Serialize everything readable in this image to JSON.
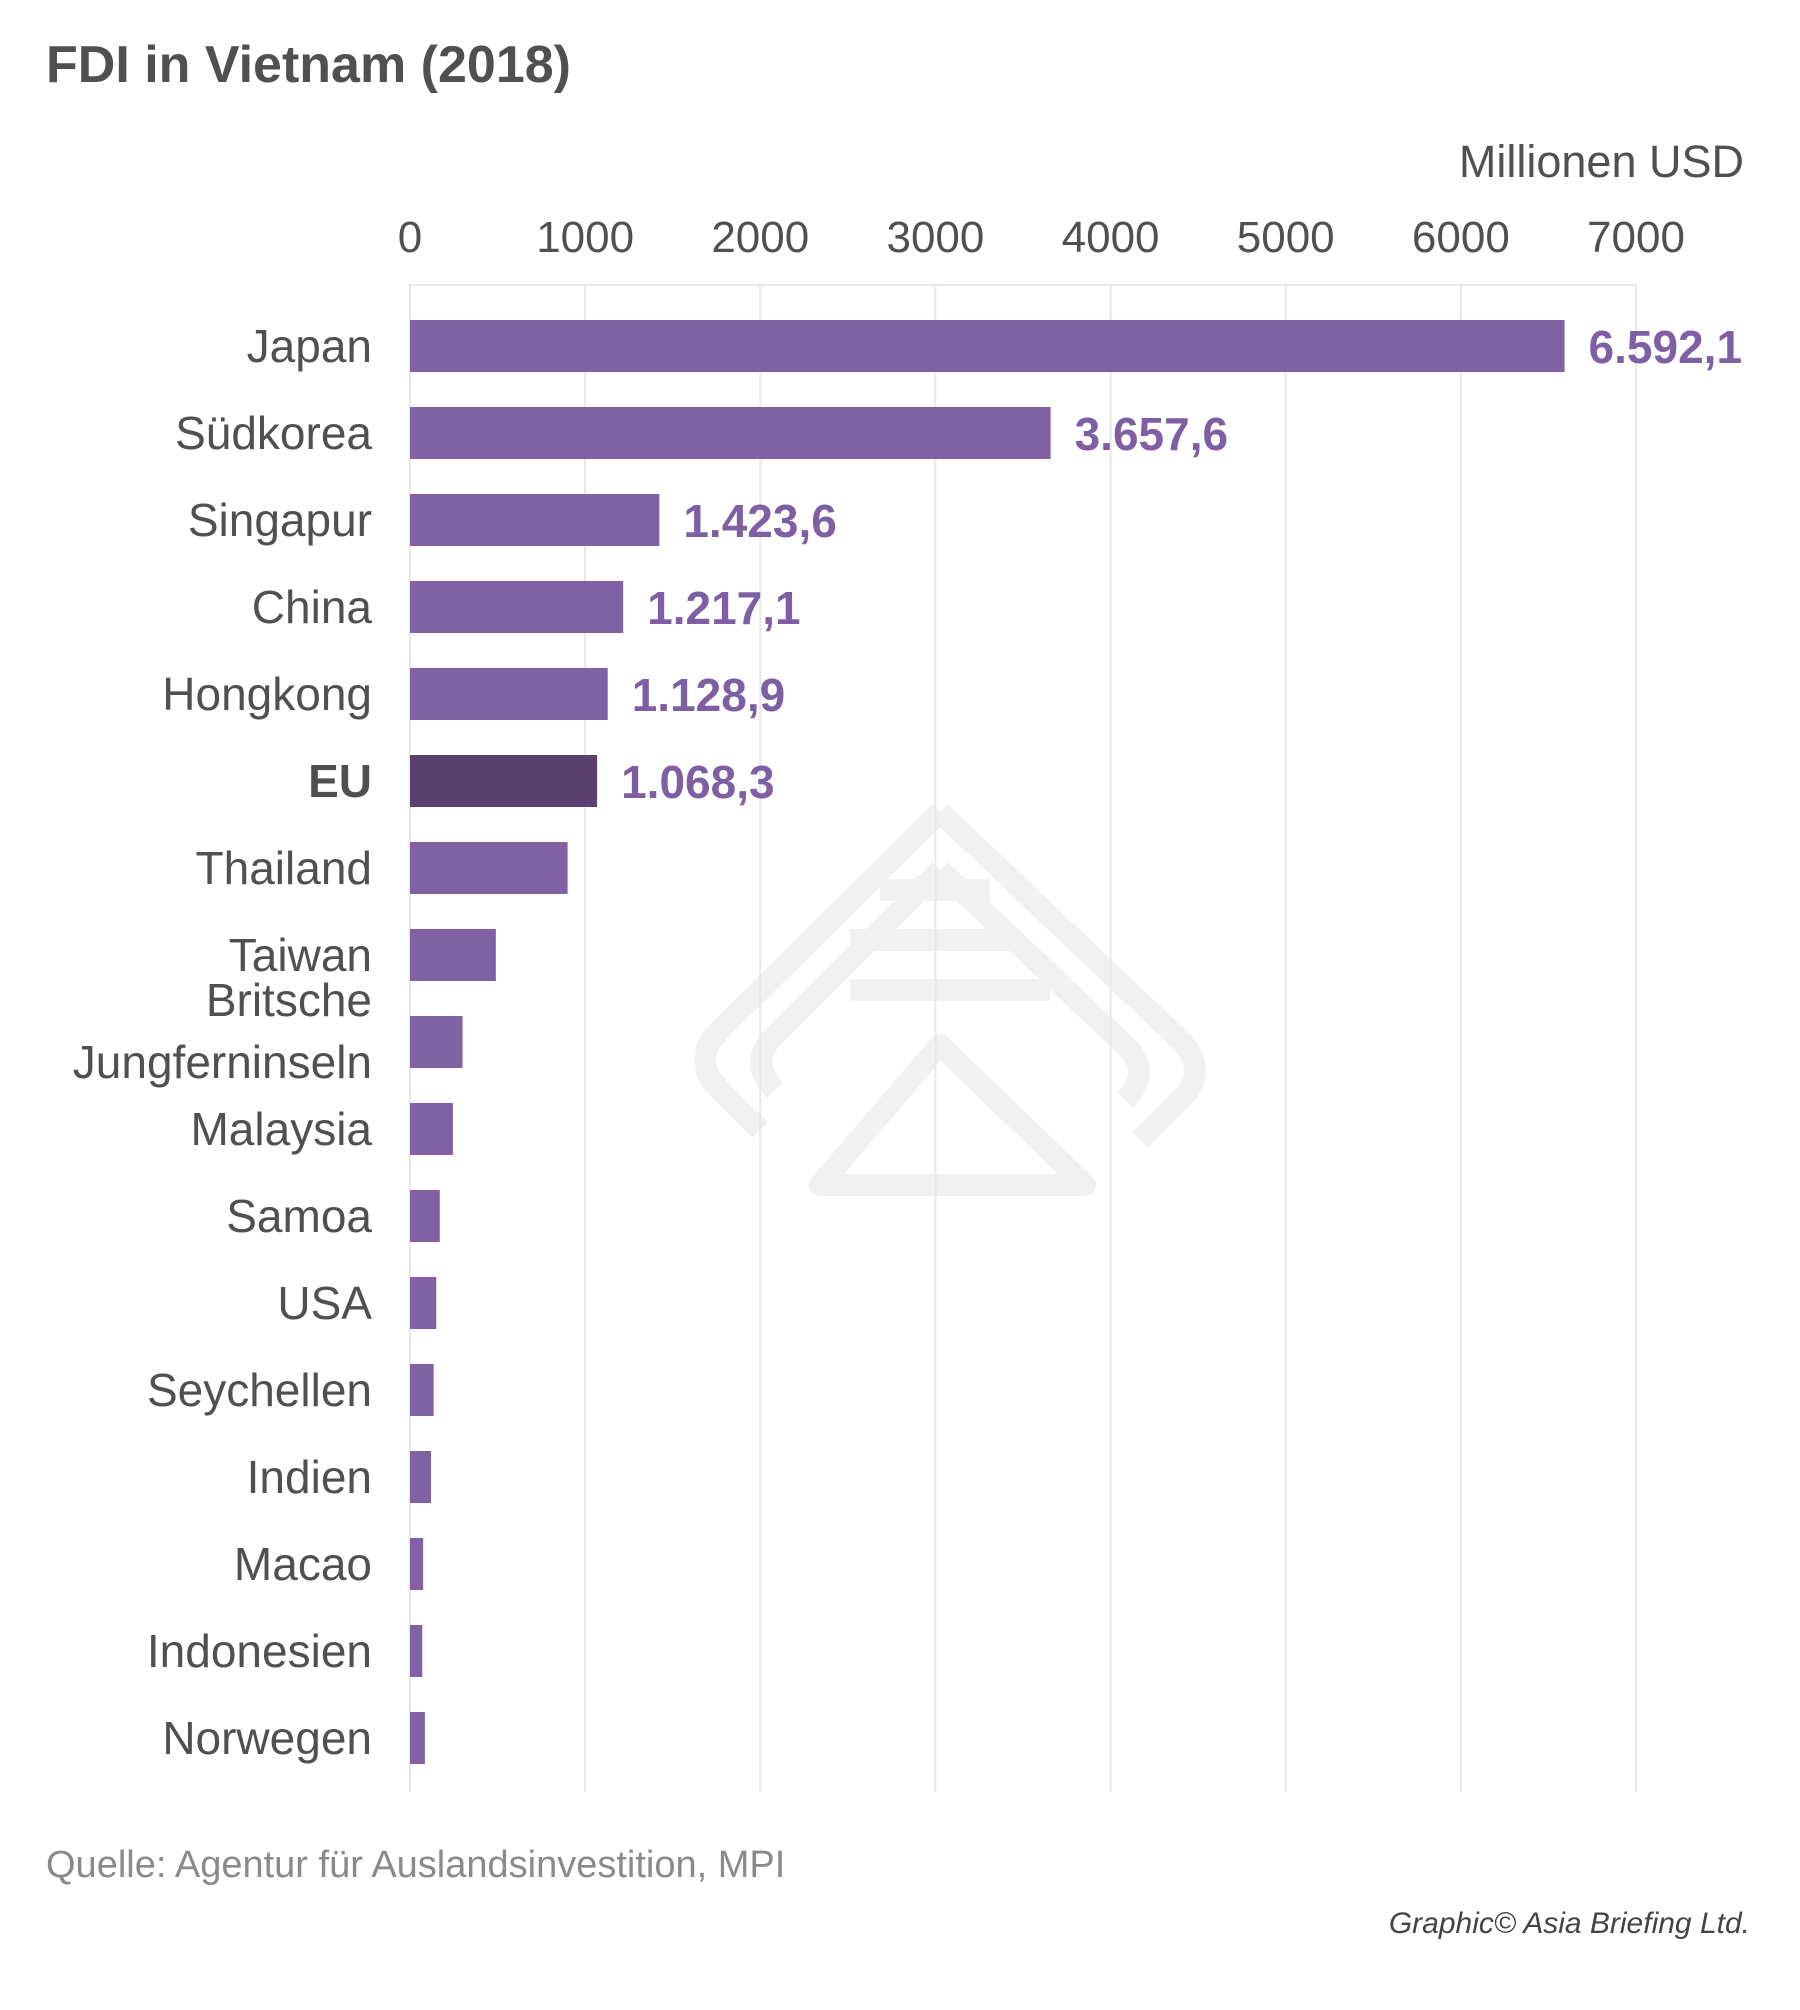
{
  "chart_data": {
    "type": "bar",
    "orientation": "horizontal",
    "title": "FDI in Vietnam (2018)",
    "unit": "Millionen USD",
    "xlim": [
      0,
      7000
    ],
    "xticks": [
      "0",
      "1000",
      "2000",
      "3000",
      "4000",
      "5000",
      "6000",
      "7000"
    ],
    "grid": true,
    "categories": [
      [
        "Japan"
      ],
      [
        "Südkorea"
      ],
      [
        "Singapur"
      ],
      [
        "China"
      ],
      [
        "Hongkong"
      ],
      [
        "EU"
      ],
      [
        "Thailand"
      ],
      [
        "Taiwan"
      ],
      [
        "Britsche",
        "Jungferninseln"
      ],
      [
        "Malaysia"
      ],
      [
        "Samoa"
      ],
      [
        "USA"
      ],
      [
        "Seychellen"
      ],
      [
        "Indien"
      ],
      [
        "Macao"
      ],
      [
        "Indonesien"
      ],
      [
        "Norwegen"
      ]
    ],
    "values": [
      6592.1,
      3657.6,
      1423.6,
      1217.1,
      1128.9,
      1068.3,
      900,
      490,
      300,
      245,
      170,
      150,
      135,
      120,
      75,
      70,
      85
    ],
    "value_labels": [
      "6.592,1",
      "3.657,6",
      "1.423,6",
      "1.217,1",
      "1.128,9",
      "1.068,3",
      "",
      "",
      "",
      "",
      "",
      "",
      "",
      "",
      "",
      "",
      ""
    ],
    "highlight": [
      "EU"
    ],
    "colors": {
      "bar": "#8061a4",
      "highlight": "#5b4070",
      "label": "#7f5fa3"
    }
  },
  "footer": {
    "source": "Quelle: Agentur für Auslandsinvestition, MPI",
    "credit": "Graphic© Asia Briefing Ltd."
  }
}
